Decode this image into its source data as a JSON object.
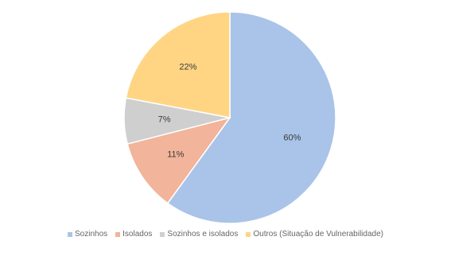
{
  "chart_data": {
    "type": "pie",
    "categories": [
      "Sozinhos",
      "Isolados",
      "Sozinhos e isolados",
      "Outros (Situação de Vulnerabilidade)"
    ],
    "values": [
      60,
      11,
      7,
      22
    ],
    "labels": [
      "60%",
      "11%",
      "7%",
      "22%"
    ],
    "colors": [
      "#a9c4e8",
      "#f2b49a",
      "#cfcfcf",
      "#ffd584"
    ],
    "start_angle": "12 o'clock",
    "direction": "clockwise",
    "legend_position": "bottom"
  }
}
